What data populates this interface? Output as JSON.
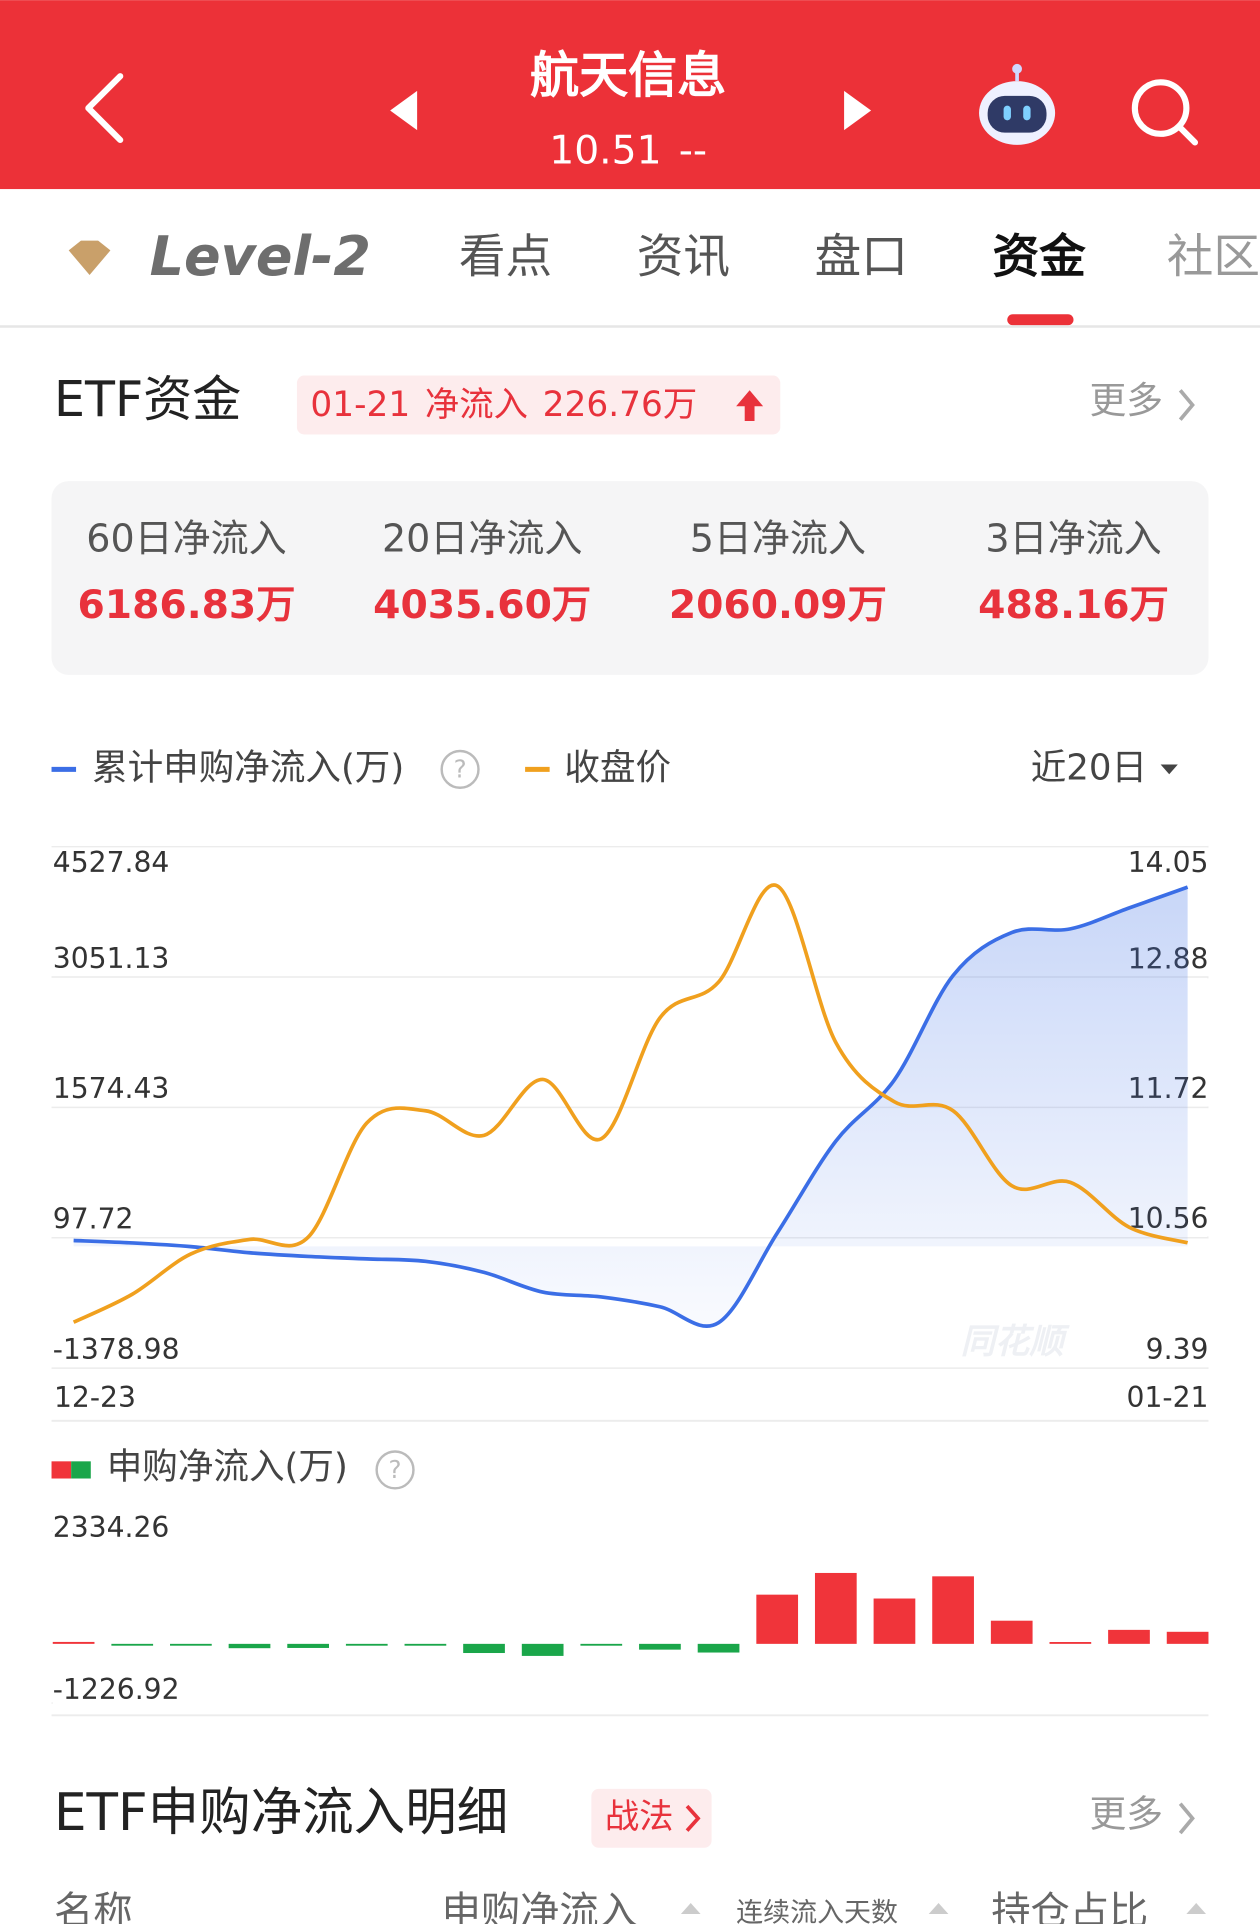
{
  "header": {
    "title": "航天信息",
    "price": "10.51",
    "change": "--"
  },
  "tabs": [
    "Level-2",
    "看点",
    "资讯",
    "盘口",
    "资金",
    "社区"
  ],
  "etf_section": {
    "title": "ETF资金",
    "badge_date": "01-21",
    "badge_label": "净流入",
    "badge_value": "226.76万",
    "more": "更多"
  },
  "stats": [
    {
      "label": "60日净流入",
      "value": "6186.83万"
    },
    {
      "label": "20日净流入",
      "value": "4035.60万"
    },
    {
      "label": "5日净流入",
      "value": "2060.09万"
    },
    {
      "label": "3日净流入",
      "value": "488.16万"
    }
  ],
  "period": "近20日",
  "watermark": "同花顺",
  "chart_data": [
    {
      "type": "line",
      "categories": [
        "12-23",
        null,
        null,
        null,
        null,
        null,
        null,
        null,
        null,
        null,
        null,
        null,
        null,
        null,
        null,
        null,
        null,
        null,
        null,
        "01-21"
      ],
      "series": [
        {
          "name": "累计申购净流入(万)",
          "color": "#3b6ee6",
          "axis": "y",
          "values": [
            66.5,
            38.7,
            -2.9,
            -72.4,
            -114.1,
            -141.9,
            -169.7,
            -294.8,
            -517.2,
            -572.8,
            -683.9,
            -864.6,
            149.9,
            1192.3,
            1887.2,
            3068.5,
            3555.0,
            3596.7,
            3832.9,
            4069.2
          ]
        },
        {
          "name": "收盘价",
          "color": "#f0a01e",
          "axis": "y2",
          "values": [
            9.8,
            10.05,
            10.41,
            10.54,
            10.56,
            11.58,
            11.69,
            11.47,
            11.97,
            11.44,
            12.52,
            12.84,
            13.7,
            12.3,
            11.77,
            11.69,
            11.02,
            11.05,
            10.65,
            10.51
          ]
        }
      ],
      "ylim": [
        -1378.98,
        4527.84
      ],
      "yticks": [
        4527.84,
        3051.13,
        1574.43,
        97.72,
        -1378.98
      ],
      "y2lim": [
        9.39,
        14.05
      ],
      "y2ticks": [
        14.05,
        12.88,
        11.72,
        10.56,
        9.39
      ],
      "grid": true
    },
    {
      "type": "bar",
      "categories": [
        "12-23",
        null,
        null,
        null,
        null,
        null,
        null,
        null,
        null,
        null,
        null,
        null,
        null,
        null,
        null,
        null,
        null,
        null,
        null,
        "01-21"
      ],
      "series": [
        {
          "name": "申购净流入(万)",
          "color": "#f0343a",
          "negative_color": "#1aa64a",
          "values": [
            40,
            -10,
            -15,
            -90,
            -85,
            -20,
            -20,
            -190,
            -250,
            -15,
            -120,
            -180,
            1020,
            1470,
            940,
            1400,
            480,
            10,
            290,
            250
          ]
        }
      ],
      "ylim": [
        -1226.92,
        2334.26
      ],
      "yticks": [
        2334.26,
        -1226.92
      ]
    }
  ],
  "detail": {
    "title": "ETF申购净流入明细",
    "tag": "战法",
    "more": "更多",
    "columns": [
      "名称",
      "申购净流入",
      "连续流入天数",
      "持仓占比"
    ]
  }
}
